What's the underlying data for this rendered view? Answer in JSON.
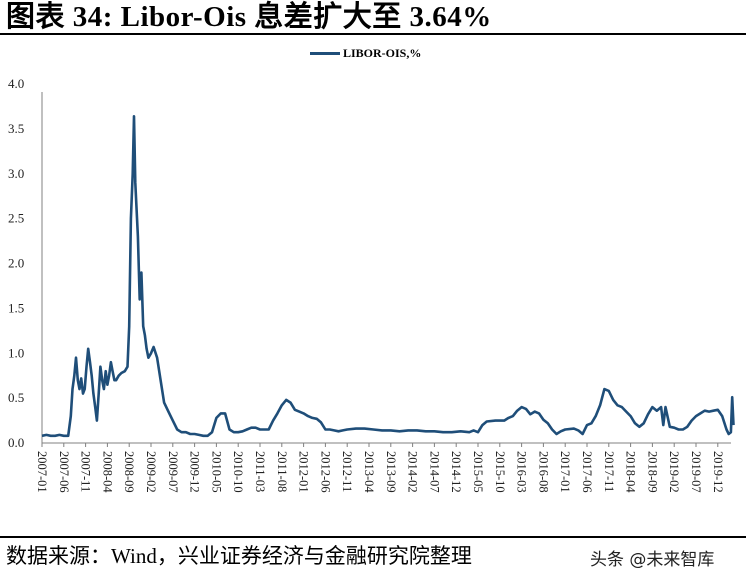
{
  "title": "图表 34:  Libor-Ois 息差扩大至 3.64%",
  "footer": {
    "source": "数据来源：Wind，兴业证券经济与金融研究院整理",
    "watermark": "头条 @未来智库"
  },
  "colors": {
    "series": "#1f4e79",
    "axis": "#808080",
    "text": "#000000"
  },
  "chart_data": {
    "type": "line",
    "title": "Libor-Ois 息差扩大至 3.64%",
    "xlabel": "",
    "ylabel": "",
    "ylim": [
      0,
      4.0
    ],
    "yticks": [
      "0.0",
      "0.5",
      "1.0",
      "1.5",
      "2.0",
      "2.5",
      "3.0",
      "3.5",
      "4.0"
    ],
    "xticks": [
      "2007-01",
      "2007-06",
      "2007-11",
      "2008-04",
      "2008-09",
      "2009-02",
      "2009-07",
      "2009-12",
      "2010-05",
      "2010-10",
      "2011-03",
      "2011-08",
      "2012-01",
      "2012-06",
      "2012-11",
      "2013-04",
      "2013-09",
      "2014-02",
      "2014-07",
      "2014-12",
      "2015-05",
      "2015-10",
      "2016-03",
      "2016-08",
      "2017-01",
      "2017-06",
      "2017-11",
      "2018-04",
      "2018-09",
      "2019-02",
      "2019-07",
      "2019-12"
    ],
    "grid": false,
    "legend_position": "top-center",
    "series": [
      {
        "name": "LIBOR-OIS,%",
        "x_unit": "months since 2007-01",
        "points": [
          [
            0,
            0.08
          ],
          [
            1,
            0.09
          ],
          [
            2,
            0.08
          ],
          [
            3,
            0.08
          ],
          [
            4,
            0.09
          ],
          [
            5,
            0.08
          ],
          [
            6,
            0.08
          ],
          [
            6.6,
            0.3
          ],
          [
            7,
            0.6
          ],
          [
            7.4,
            0.75
          ],
          [
            7.8,
            0.95
          ],
          [
            8.2,
            0.7
          ],
          [
            8.6,
            0.6
          ],
          [
            9,
            0.72
          ],
          [
            9.4,
            0.55
          ],
          [
            9.8,
            0.6
          ],
          [
            10.2,
            0.85
          ],
          [
            10.6,
            1.05
          ],
          [
            11,
            0.9
          ],
          [
            11.4,
            0.75
          ],
          [
            11.8,
            0.55
          ],
          [
            12.2,
            0.4
          ],
          [
            12.6,
            0.25
          ],
          [
            13,
            0.55
          ],
          [
            13.4,
            0.85
          ],
          [
            13.8,
            0.7
          ],
          [
            14.2,
            0.6
          ],
          [
            14.6,
            0.8
          ],
          [
            15,
            0.65
          ],
          [
            15.4,
            0.75
          ],
          [
            15.8,
            0.9
          ],
          [
            16.2,
            0.8
          ],
          [
            16.6,
            0.7
          ],
          [
            17,
            0.7
          ],
          [
            17.6,
            0.75
          ],
          [
            18.2,
            0.78
          ],
          [
            19,
            0.8
          ],
          [
            19.6,
            0.85
          ],
          [
            20,
            1.3
          ],
          [
            20.4,
            2.5
          ],
          [
            20.8,
            3.0
          ],
          [
            21.1,
            3.64
          ],
          [
            21.4,
            2.9
          ],
          [
            21.7,
            2.6
          ],
          [
            22.0,
            2.3
          ],
          [
            22.4,
            1.6
          ],
          [
            22.8,
            1.9
          ],
          [
            23.2,
            1.3
          ],
          [
            23.6,
            1.2
          ],
          [
            24,
            1.05
          ],
          [
            24.4,
            0.95
          ],
          [
            25,
            1.0
          ],
          [
            25.6,
            1.07
          ],
          [
            26.4,
            0.95
          ],
          [
            27.2,
            0.7
          ],
          [
            28,
            0.45
          ],
          [
            29,
            0.35
          ],
          [
            30,
            0.25
          ],
          [
            31,
            0.15
          ],
          [
            32,
            0.12
          ],
          [
            33,
            0.12
          ],
          [
            34,
            0.1
          ],
          [
            35,
            0.1
          ],
          [
            36,
            0.09
          ],
          [
            37,
            0.08
          ],
          [
            38,
            0.08
          ],
          [
            39,
            0.12
          ],
          [
            40,
            0.28
          ],
          [
            41,
            0.33
          ],
          [
            42,
            0.33
          ],
          [
            43,
            0.15
          ],
          [
            44,
            0.12
          ],
          [
            45,
            0.12
          ],
          [
            46,
            0.13
          ],
          [
            47,
            0.15
          ],
          [
            48,
            0.17
          ],
          [
            49,
            0.17
          ],
          [
            50,
            0.15
          ],
          [
            51,
            0.15
          ],
          [
            52,
            0.15
          ],
          [
            53,
            0.25
          ],
          [
            54,
            0.33
          ],
          [
            55,
            0.42
          ],
          [
            56,
            0.48
          ],
          [
            57,
            0.45
          ],
          [
            58,
            0.37
          ],
          [
            59,
            0.35
          ],
          [
            60,
            0.33
          ],
          [
            61,
            0.3
          ],
          [
            62,
            0.28
          ],
          [
            63,
            0.27
          ],
          [
            64,
            0.23
          ],
          [
            65,
            0.15
          ],
          [
            66,
            0.15
          ],
          [
            67,
            0.14
          ],
          [
            68,
            0.13
          ],
          [
            69,
            0.14
          ],
          [
            70,
            0.15
          ],
          [
            72,
            0.16
          ],
          [
            74,
            0.16
          ],
          [
            76,
            0.15
          ],
          [
            78,
            0.14
          ],
          [
            80,
            0.14
          ],
          [
            82,
            0.13
          ],
          [
            84,
            0.14
          ],
          [
            86,
            0.14
          ],
          [
            88,
            0.13
          ],
          [
            90,
            0.13
          ],
          [
            92,
            0.12
          ],
          [
            94,
            0.12
          ],
          [
            96,
            0.13
          ],
          [
            98,
            0.12
          ],
          [
            99,
            0.14
          ],
          [
            100,
            0.12
          ],
          [
            101,
            0.2
          ],
          [
            102,
            0.24
          ],
          [
            104,
            0.25
          ],
          [
            106,
            0.25
          ],
          [
            107,
            0.28
          ],
          [
            108,
            0.3
          ],
          [
            109,
            0.36
          ],
          [
            110,
            0.4
          ],
          [
            111,
            0.38
          ],
          [
            112,
            0.32
          ],
          [
            113,
            0.35
          ],
          [
            114,
            0.33
          ],
          [
            115,
            0.26
          ],
          [
            116,
            0.22
          ],
          [
            117,
            0.15
          ],
          [
            118,
            0.1
          ],
          [
            119,
            0.13
          ],
          [
            120,
            0.15
          ],
          [
            122,
            0.16
          ],
          [
            123,
            0.14
          ],
          [
            124,
            0.1
          ],
          [
            125,
            0.2
          ],
          [
            126,
            0.22
          ],
          [
            127,
            0.3
          ],
          [
            128,
            0.42
          ],
          [
            129,
            0.6
          ],
          [
            130,
            0.58
          ],
          [
            131,
            0.48
          ],
          [
            132,
            0.42
          ],
          [
            133,
            0.4
          ],
          [
            134,
            0.35
          ],
          [
            135,
            0.3
          ],
          [
            136,
            0.22
          ],
          [
            137,
            0.18
          ],
          [
            138,
            0.22
          ],
          [
            139,
            0.32
          ],
          [
            140,
            0.4
          ],
          [
            141,
            0.36
          ],
          [
            142,
            0.4
          ],
          [
            142.5,
            0.2
          ],
          [
            143,
            0.4
          ],
          [
            144,
            0.18
          ],
          [
            145,
            0.17
          ],
          [
            146,
            0.15
          ],
          [
            147,
            0.15
          ],
          [
            148,
            0.18
          ],
          [
            149,
            0.25
          ],
          [
            150,
            0.3
          ],
          [
            151,
            0.33
          ],
          [
            152,
            0.36
          ],
          [
            153,
            0.35
          ],
          [
            154,
            0.36
          ],
          [
            155,
            0.37
          ],
          [
            156,
            0.3
          ],
          [
            157,
            0.15
          ],
          [
            157.5,
            0.1
          ],
          [
            158,
            0.12
          ],
          [
            158.3,
            0.51
          ],
          [
            158.6,
            0.2
          ]
        ]
      }
    ]
  },
  "legend": {
    "label": "LIBOR-OIS,%"
  }
}
